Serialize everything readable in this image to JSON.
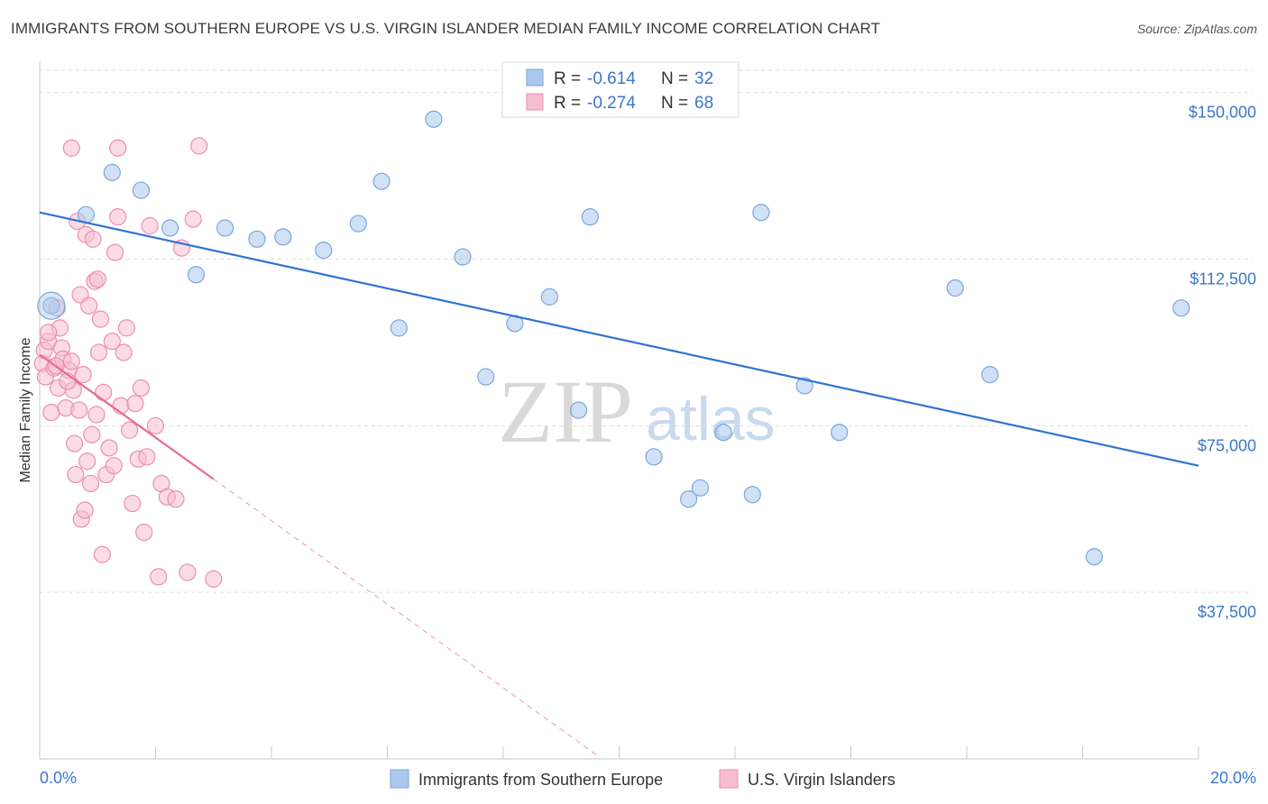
{
  "chart_data": {
    "type": "scatter",
    "title": "IMMIGRANTS FROM SOUTHERN EUROPE VS U.S. VIRGIN ISLANDER MEDIAN FAMILY INCOME CORRELATION CHART",
    "source": "Source: ZipAtlas.com",
    "ylabel": "Median Family Income",
    "xlabel": "",
    "xlim": [
      0,
      20
    ],
    "ylim": [
      0,
      155000
    ],
    "x_tick_labels": {
      "left": "0.0%",
      "right": "20.0%"
    },
    "y_ticks": [
      {
        "value": 37500,
        "label": "$37,500"
      },
      {
        "value": 75000,
        "label": "$75,000"
      },
      {
        "value": 112500,
        "label": "$112,500"
      },
      {
        "value": 150000,
        "label": "$150,000"
      }
    ],
    "watermark": {
      "zip": "ZIP",
      "atlas": "atlas"
    },
    "legend": [
      {
        "r_label": "R =",
        "r_value": "-0.614",
        "n_label": "N =",
        "n_value": "32"
      },
      {
        "r_label": "R =",
        "r_value": "-0.274",
        "n_label": "N =",
        "n_value": "68"
      }
    ],
    "series": [
      {
        "name": "Immigrants from Southern Europe",
        "color": "#aac8ee",
        "stroke": "#7aa6dc",
        "trend_color": "#2f74cf",
        "trend": {
          "x0": 0.0,
          "y0": 123000,
          "x1": 20.0,
          "y1": 66000
        },
        "points": [
          [
            0.2,
            102000
          ],
          [
            0.8,
            122500
          ],
          [
            1.25,
            132000
          ],
          [
            1.75,
            128000
          ],
          [
            2.25,
            119500
          ],
          [
            2.7,
            109000
          ],
          [
            3.2,
            119500
          ],
          [
            3.75,
            117000
          ],
          [
            4.2,
            117500
          ],
          [
            4.9,
            114500
          ],
          [
            5.5,
            120500
          ],
          [
            5.9,
            130000
          ],
          [
            6.2,
            97000
          ],
          [
            6.8,
            144000
          ],
          [
            7.3,
            113000
          ],
          [
            7.7,
            86000
          ],
          [
            8.2,
            98000
          ],
          [
            8.8,
            104000
          ],
          [
            9.3,
            78500
          ],
          [
            9.5,
            122000
          ],
          [
            10.6,
            68000
          ],
          [
            11.2,
            58500
          ],
          [
            11.4,
            61000
          ],
          [
            11.8,
            73500
          ],
          [
            12.3,
            59500
          ],
          [
            12.45,
            123000
          ],
          [
            13.2,
            84000
          ],
          [
            13.8,
            73500
          ],
          [
            15.8,
            106000
          ],
          [
            16.4,
            86500
          ],
          [
            18.2,
            45500
          ],
          [
            19.7,
            101500
          ]
        ]
      },
      {
        "name": "U.S. Virgin Islanders",
        "color": "#f7bdd0",
        "stroke": "#eb8fb0",
        "trend_color": "#e66a95",
        "trend": {
          "x0": 0.0,
          "y0": 91000,
          "x1": 3.0,
          "y1": 63000
        },
        "trend_dashed": {
          "x0": 3.0,
          "y0": 63000,
          "x1": 9.6,
          "y1": 1000
        },
        "points": [
          [
            0.05,
            89000
          ],
          [
            0.08,
            92000
          ],
          [
            0.1,
            86000
          ],
          [
            0.15,
            94000
          ],
          [
            0.2,
            78000
          ],
          [
            0.25,
            88000
          ],
          [
            0.3,
            101500
          ],
          [
            0.32,
            83500
          ],
          [
            0.35,
            97000
          ],
          [
            0.38,
            92500
          ],
          [
            0.4,
            90000
          ],
          [
            0.45,
            79000
          ],
          [
            0.5,
            87500
          ],
          [
            0.55,
            89500
          ],
          [
            0.58,
            83000
          ],
          [
            0.6,
            71000
          ],
          [
            0.62,
            64000
          ],
          [
            0.65,
            121000
          ],
          [
            0.7,
            104500
          ],
          [
            0.72,
            54000
          ],
          [
            0.75,
            86500
          ],
          [
            0.78,
            56000
          ],
          [
            0.8,
            118000
          ],
          [
            0.82,
            67000
          ],
          [
            0.85,
            102000
          ],
          [
            0.9,
            73000
          ],
          [
            0.92,
            117000
          ],
          [
            0.95,
            107500
          ],
          [
            0.98,
            77500
          ],
          [
            1.0,
            108000
          ],
          [
            1.02,
            91500
          ],
          [
            1.05,
            99000
          ],
          [
            1.1,
            82500
          ],
          [
            1.15,
            64000
          ],
          [
            1.2,
            70000
          ],
          [
            1.25,
            94000
          ],
          [
            1.28,
            66000
          ],
          [
            1.3,
            114000
          ],
          [
            1.35,
            122000
          ],
          [
            1.4,
            79500
          ],
          [
            1.45,
            91500
          ],
          [
            1.5,
            97000
          ],
          [
            1.55,
            74000
          ],
          [
            1.6,
            57500
          ],
          [
            1.65,
            80000
          ],
          [
            1.7,
            67500
          ],
          [
            1.75,
            83500
          ],
          [
            1.8,
            51000
          ],
          [
            1.85,
            68000
          ],
          [
            1.9,
            120000
          ],
          [
            2.0,
            75000
          ],
          [
            2.05,
            41000
          ],
          [
            2.1,
            62000
          ],
          [
            2.2,
            59000
          ],
          [
            2.35,
            58500
          ],
          [
            2.45,
            115000
          ],
          [
            2.55,
            42000
          ],
          [
            2.65,
            121500
          ],
          [
            2.75,
            138000
          ],
          [
            3.0,
            40500
          ],
          [
            0.55,
            137500
          ],
          [
            1.35,
            137500
          ],
          [
            0.15,
            96000
          ],
          [
            0.28,
            88500
          ],
          [
            0.48,
            85000
          ],
          [
            0.68,
            78500
          ],
          [
            0.88,
            62000
          ],
          [
            1.08,
            46000
          ]
        ]
      }
    ]
  }
}
